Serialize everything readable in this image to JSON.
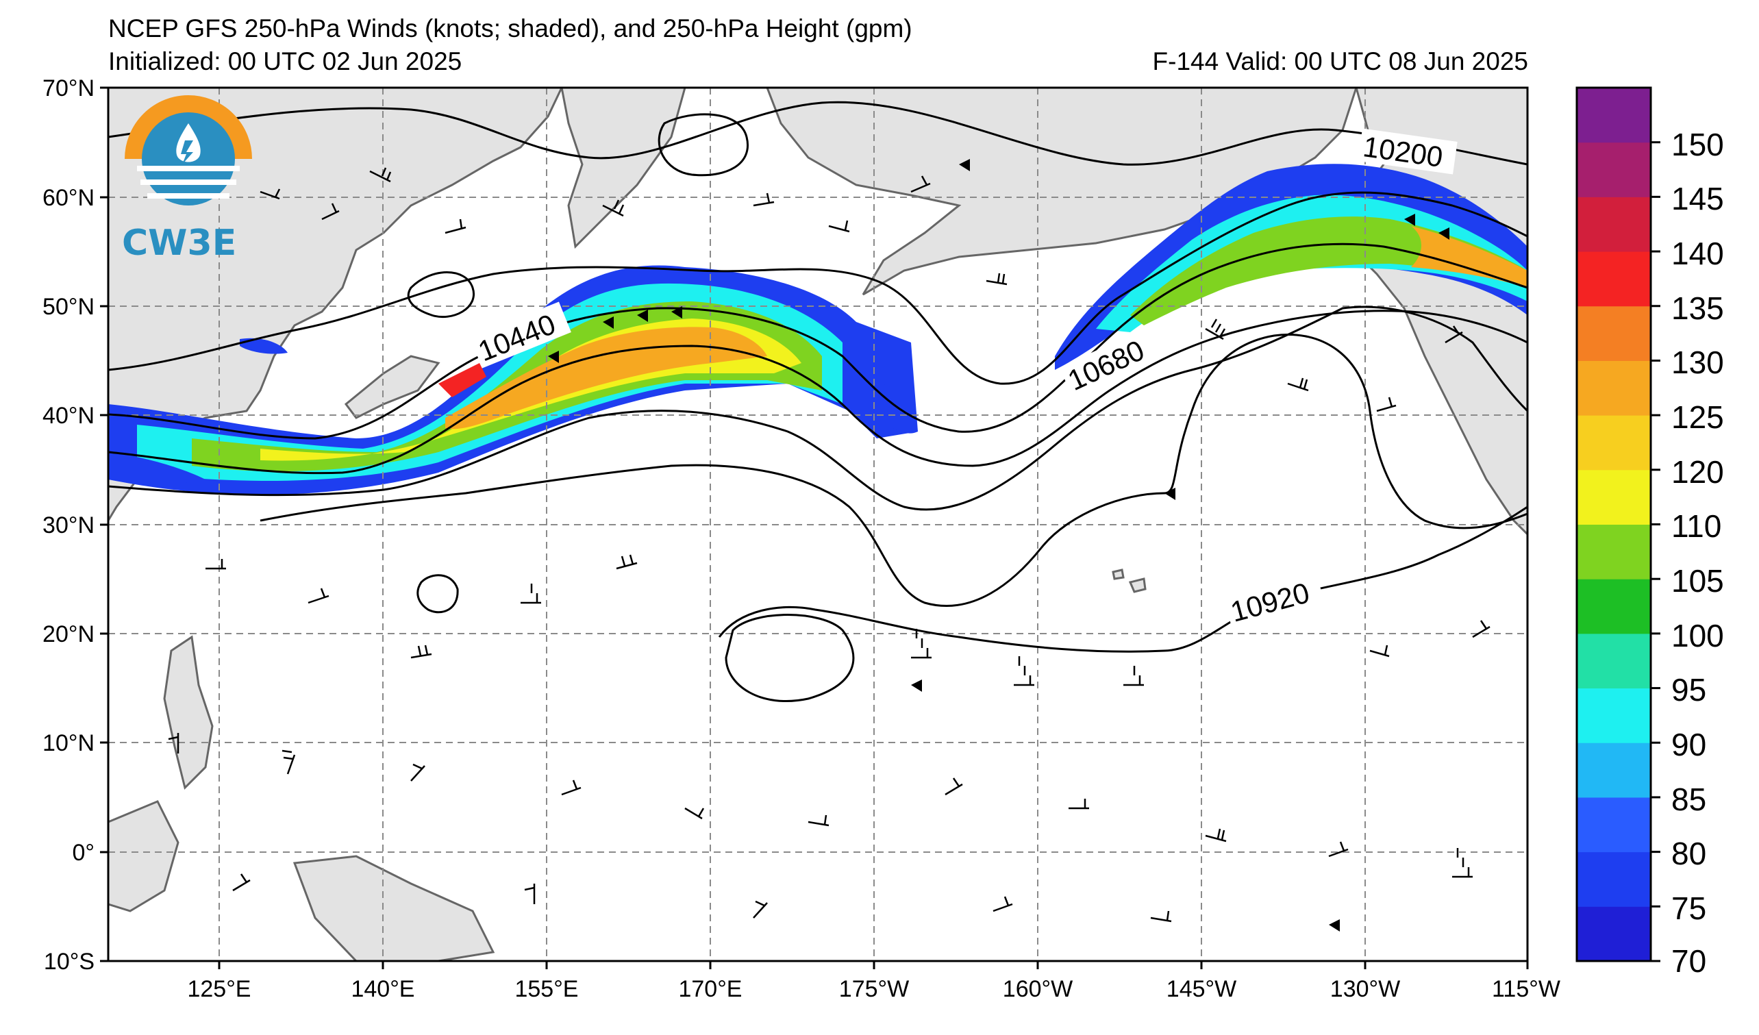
{
  "header": {
    "title": "NCEP GFS 250-hPa Winds (knots; shaded), and 250-hPa Height (gpm)",
    "initialized": "Initialized: 00 UTC 02 Jun 2025",
    "valid": "F-144  Valid: 00 UTC 08 Jun 2025"
  },
  "logo": {
    "text": "CW3E"
  },
  "axes": {
    "lat_labels": [
      "70°N",
      "60°N",
      "50°N",
      "40°N",
      "30°N",
      "20°N",
      "10°N",
      "0°",
      "10°S"
    ],
    "lon_labels": [
      "125°E",
      "140°E",
      "155°E",
      "170°E",
      "175°W",
      "160°W",
      "145°W",
      "130°W",
      "115°W"
    ]
  },
  "contours": {
    "labels": [
      "10440",
      "10680",
      "10200",
      "10920"
    ]
  },
  "colorbar": {
    "labels": [
      "150",
      "145",
      "140",
      "135",
      "130",
      "125",
      "120",
      "110",
      "105",
      "100",
      "95",
      "90",
      "85",
      "80",
      "75",
      "70"
    ],
    "colors": [
      "#1f1fd6",
      "#1e3ef0",
      "#2a5cff",
      "#21b8f5",
      "#1ef0f0",
      "#22e0a6",
      "#1dbf25",
      "#7fd320",
      "#f2f21d",
      "#f7cf1f",
      "#f6a821",
      "#f47f23",
      "#f42323",
      "#d21f3c",
      "#a61f6d",
      "#7d1f90"
    ]
  },
  "colors": {
    "land": "#e3e3e3",
    "coast": "#666666",
    "grid": "#8a8a8a",
    "logo_orange": "#f59a20",
    "logo_blue": "#2a8fc1"
  }
}
